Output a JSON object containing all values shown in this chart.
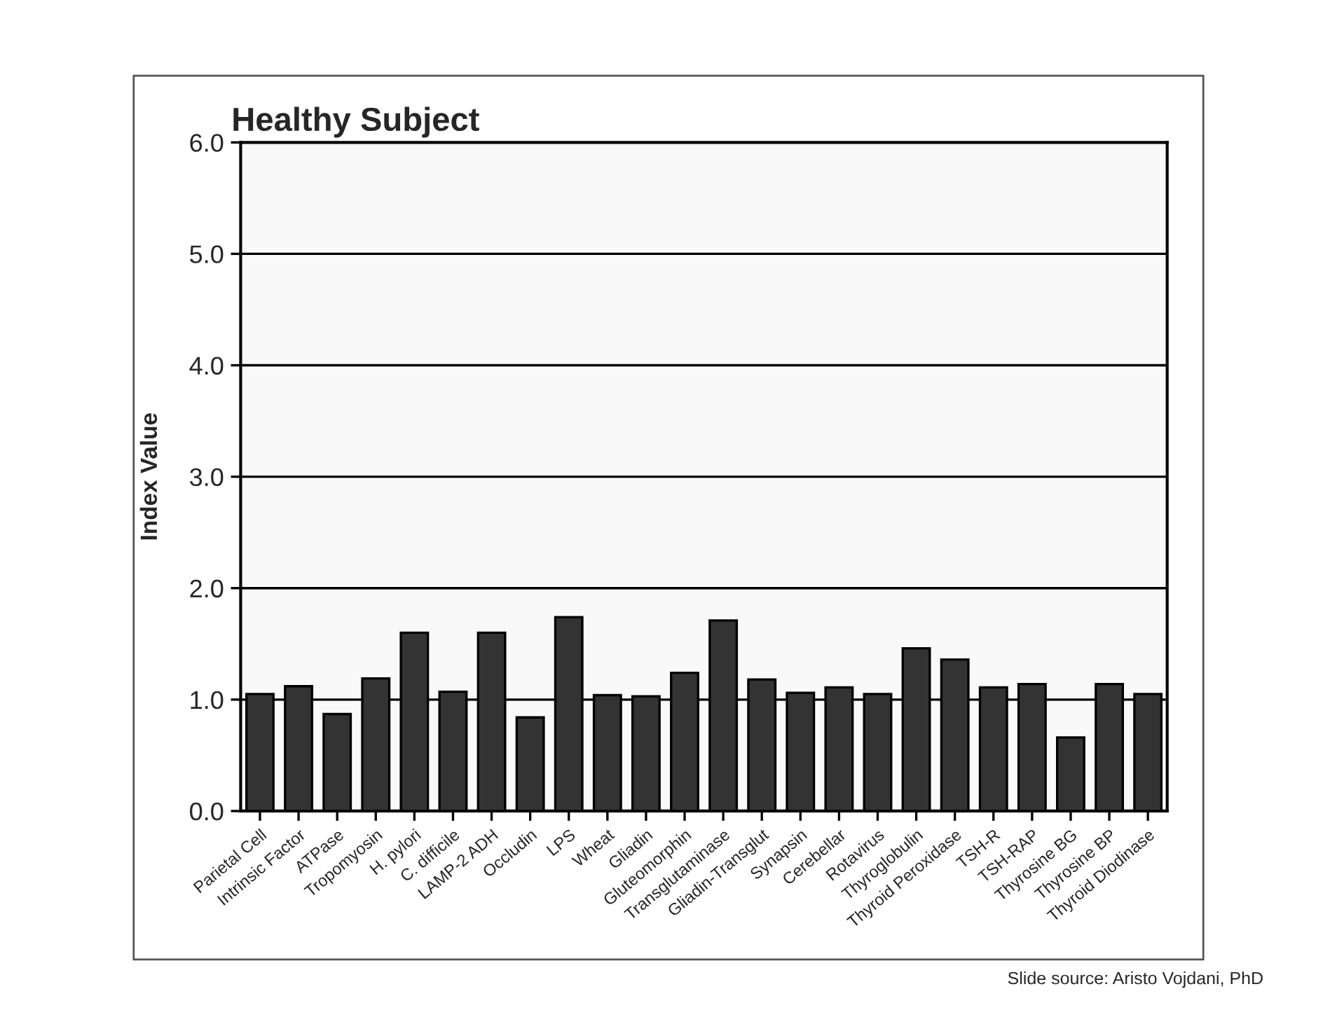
{
  "chart_data": {
    "type": "bar",
    "title": "Healthy Subject",
    "ylabel": "Index Value",
    "categories": [
      "Parietal Cell",
      "Intrinsic Factor",
      "ATPase",
      "Tropomyosin",
      "H. pylori",
      "C. difficile",
      "LAMP-2 ADH",
      "Occludin",
      "LPS",
      "Wheat",
      "Gliadin",
      "Gluteomorphin",
      "Transglutaminase",
      "Gliadin-Transglut",
      "Synapsin",
      "Cerebellar",
      "Rotavirus",
      "Thyroglobulin",
      "Thyroid Peroxidase",
      "TSH-R",
      "TSH-RAP",
      "Thyrosine BG",
      "Thyrosine BP",
      "Thyroid Diodinase"
    ],
    "values": [
      1.05,
      1.12,
      0.87,
      1.19,
      1.6,
      1.07,
      1.6,
      0.84,
      1.74,
      1.04,
      1.03,
      1.24,
      1.71,
      1.18,
      1.06,
      1.11,
      1.05,
      1.46,
      1.36,
      1.11,
      1.14,
      0.66,
      1.14,
      1.05
    ],
    "color": "#333333",
    "ylim": [
      0,
      6
    ],
    "yticks": [
      {
        "value": 0,
        "label": "0.0"
      },
      {
        "value": 1,
        "label": "1.0"
      },
      {
        "value": 2,
        "label": "2.0"
      },
      {
        "value": 3,
        "label": "3.0"
      },
      {
        "value": 4,
        "label": "4.0"
      },
      {
        "value": 5,
        "label": "5.0"
      },
      {
        "value": 6,
        "label": "6.0"
      }
    ],
    "grid": "y",
    "annotations": [
      "Slide source: Aristo Vojdani, PhD"
    ]
  }
}
